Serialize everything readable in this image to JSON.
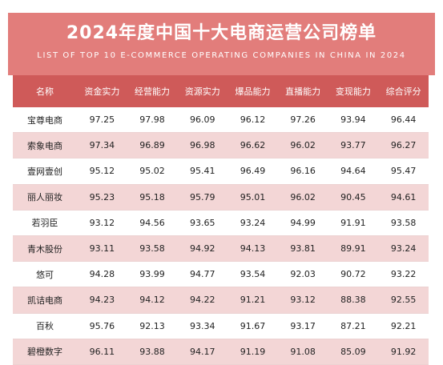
{
  "header": {
    "title": "2024年度中国十大电商运营公司榜单",
    "subtitle": "LIST OF TOP 10 E-COMMERCE OPERATING COMPANIES IN CHINA IN 2024"
  },
  "table": {
    "columns": [
      "名称",
      "资金实力",
      "经营能力",
      "资源实力",
      "爆品能力",
      "直播能力",
      "变现能力",
      "综合评分"
    ],
    "rows": [
      [
        "宝尊电商",
        "97.25",
        "97.98",
        "96.09",
        "96.12",
        "97.26",
        "93.94",
        "96.44"
      ],
      [
        "索象电商",
        "97.34",
        "96.89",
        "96.98",
        "96.62",
        "96.02",
        "93.77",
        "96.27"
      ],
      [
        "壹网壹创",
        "95.12",
        "95.02",
        "95.41",
        "96.49",
        "96.16",
        "94.64",
        "95.47"
      ],
      [
        "丽人丽妆",
        "95.23",
        "95.18",
        "95.79",
        "95.01",
        "96.02",
        "90.45",
        "94.61"
      ],
      [
        "若羽臣",
        "93.12",
        "94.56",
        "93.65",
        "93.24",
        "94.99",
        "91.91",
        "93.58"
      ],
      [
        "青木股份",
        "93.11",
        "93.58",
        "94.92",
        "94.13",
        "93.81",
        "89.91",
        "93.24"
      ],
      [
        "悠可",
        "94.28",
        "93.99",
        "94.77",
        "93.54",
        "92.03",
        "90.72",
        "93.22"
      ],
      [
        "凯诘电商",
        "94.23",
        "94.12",
        "94.22",
        "91.21",
        "93.12",
        "88.38",
        "92.55"
      ],
      [
        "百秋",
        "95.76",
        "92.13",
        "93.34",
        "91.67",
        "93.17",
        "87.21",
        "92.21"
      ],
      [
        "碧橙数字",
        "96.11",
        "93.88",
        "94.17",
        "91.19",
        "91.08",
        "85.09",
        "91.92"
      ]
    ]
  },
  "colors": {
    "header_bg": "#e27d7b",
    "column_header_bg": "#cf5a59",
    "stripe_bg": "#f3d6d6"
  }
}
